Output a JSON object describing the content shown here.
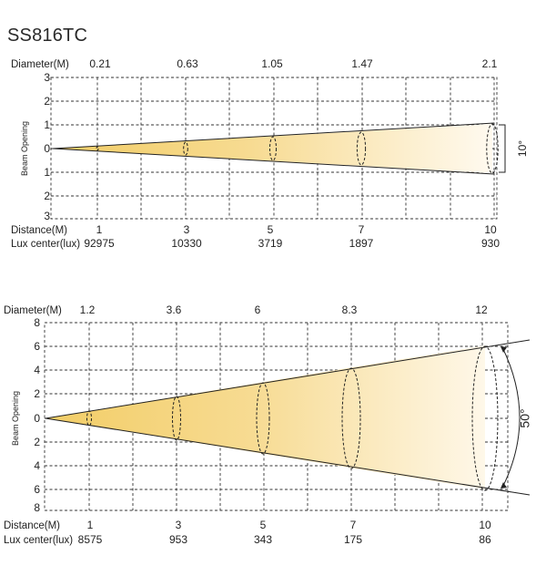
{
  "title": "SS816TC",
  "colors": {
    "beam_near": "#f2cd66",
    "beam_far": "#fffaf0",
    "grid": "#333333",
    "ink": "#222222"
  },
  "diagrams": [
    {
      "diameter_label": "Diameter(M)",
      "diameters": [
        "0.21",
        "0.63",
        "1.05",
        "1.47",
        "2.1"
      ],
      "beam_opening_label": "Beam Opening",
      "y_ticks_top": [
        "3",
        "2",
        "1",
        "0"
      ],
      "y_ticks_bottom": [
        "1",
        "2",
        "3"
      ],
      "angle_label": "10°",
      "distance_label": "Distance(M)",
      "distances": [
        "1",
        "3",
        "5",
        "7",
        "10"
      ],
      "lux_label": "Lux center(lux)",
      "lux": [
        "92975",
        "10330",
        "3719",
        "1897",
        "930"
      ]
    },
    {
      "diameter_label": "Diameter(M)",
      "diameters": [
        "1.2",
        "3.6",
        "6",
        "8.3",
        "12"
      ],
      "beam_opening_label": "Beam Opening",
      "y_ticks_top": [
        "8",
        "6",
        "4",
        "2",
        "0"
      ],
      "y_ticks_bottom": [
        "2",
        "4",
        "6",
        "8"
      ],
      "angle_label": "50°",
      "distance_label": "Distance(M)",
      "distances": [
        "1",
        "3",
        "5",
        "7",
        "10"
      ],
      "lux_label": "Lux center(lux)",
      "lux": [
        "8575",
        "953",
        "343",
        "175",
        "86"
      ]
    }
  ]
}
